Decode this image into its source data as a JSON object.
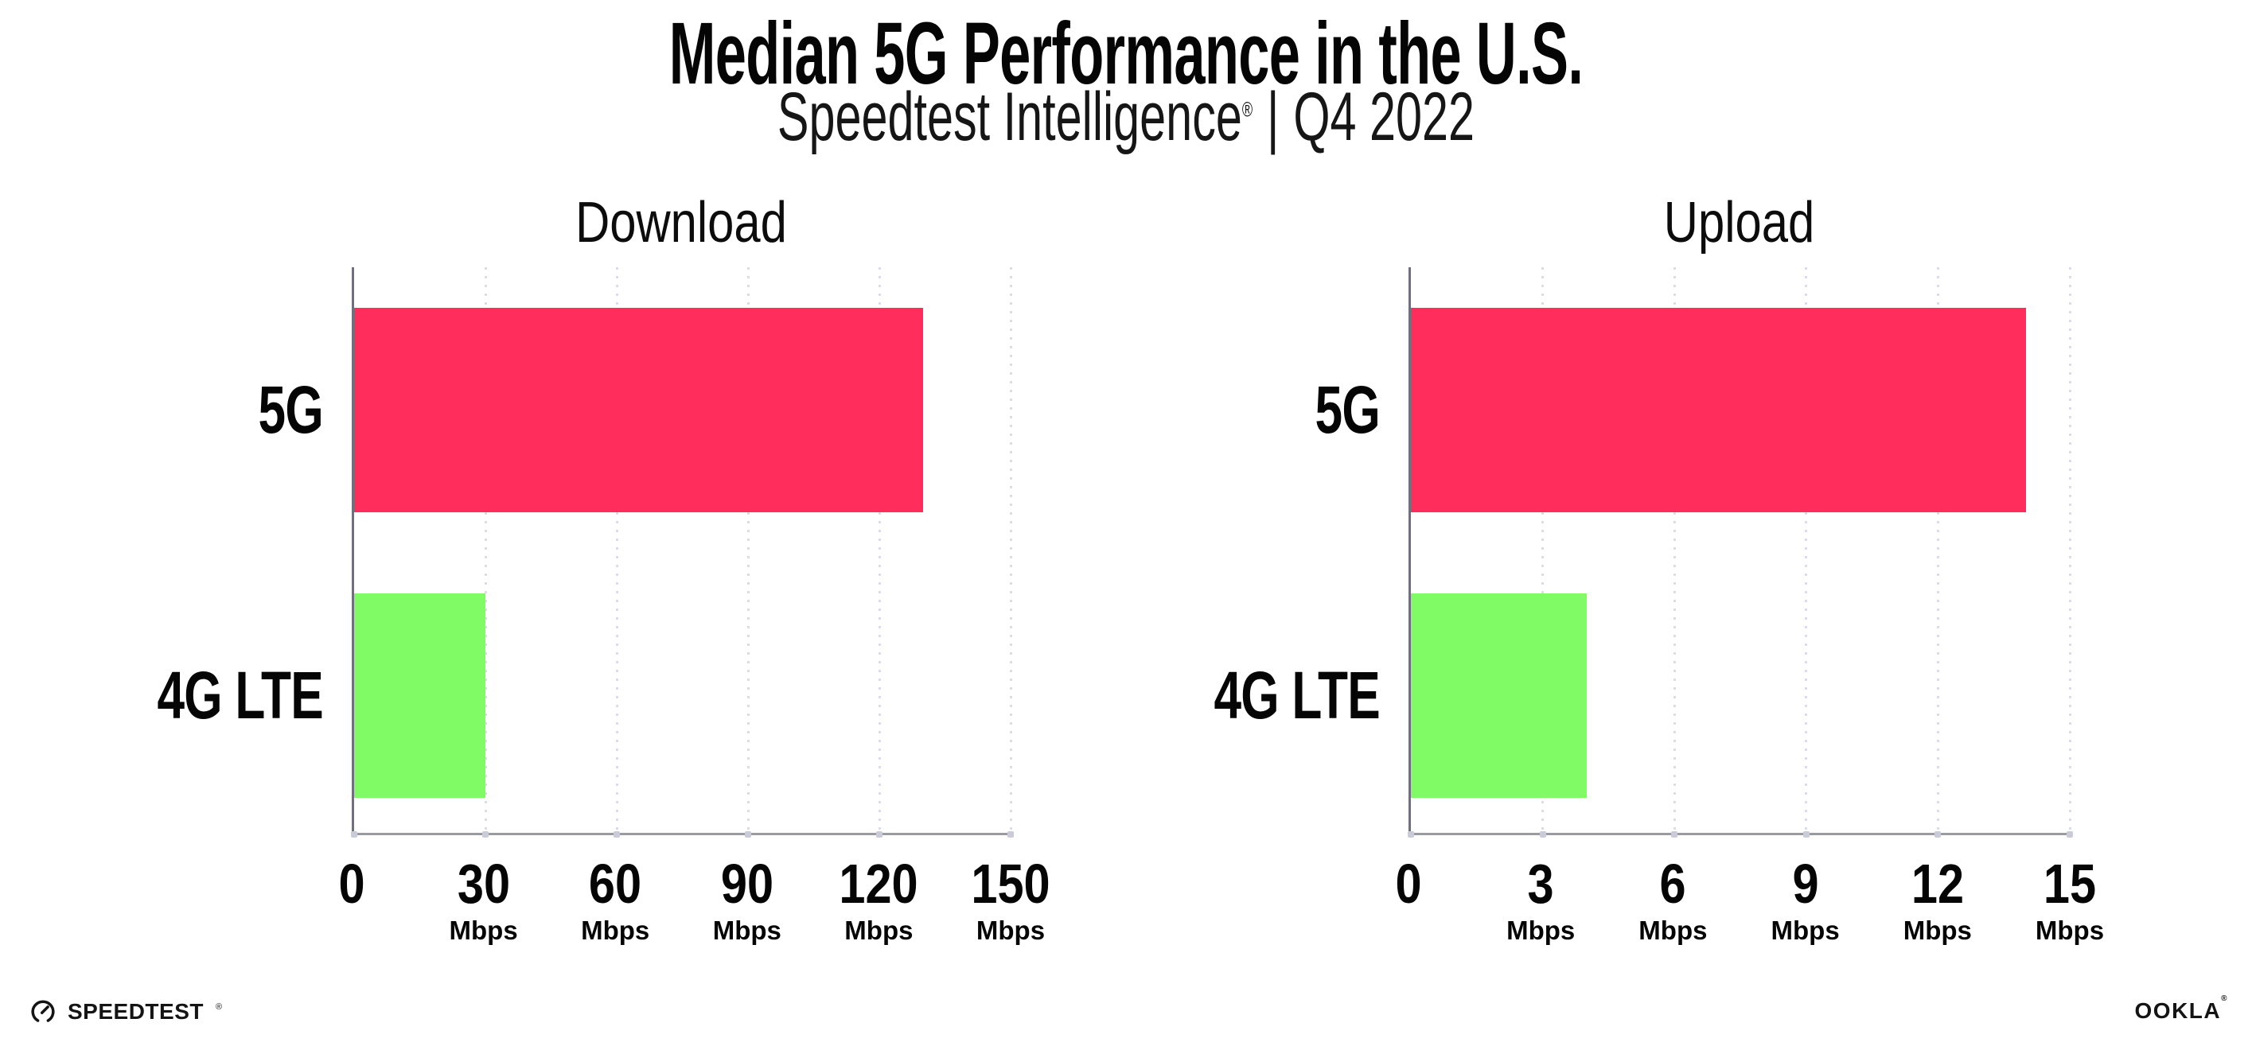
{
  "header": {
    "title": "Median 5G Performance in the U.S.",
    "subtitle_brand": "Speedtest Intelligence",
    "subtitle_reg": "®",
    "subtitle_divider": "|",
    "subtitle_period": "Q4 2022"
  },
  "chart_data": [
    {
      "type": "bar",
      "orientation": "horizontal",
      "title": "Download",
      "categories": [
        "5G",
        "4G LTE"
      ],
      "values": [
        130,
        30
      ],
      "unit": "Mbps",
      "xlabel": "",
      "ylabel": "",
      "xlim": [
        0,
        150
      ],
      "xticks": [
        0,
        30,
        60,
        90,
        120,
        150
      ],
      "bar_colors": [
        "#FF2D5B",
        "#80FB66"
      ],
      "grid": "dotted-vertical",
      "legend": "none"
    },
    {
      "type": "bar",
      "orientation": "horizontal",
      "title": "Upload",
      "categories": [
        "5G",
        "4G LTE"
      ],
      "values": [
        14,
        4
      ],
      "unit": "Mbps",
      "xlabel": "",
      "ylabel": "",
      "xlim": [
        0,
        15
      ],
      "xticks": [
        0,
        3,
        6,
        9,
        12,
        15
      ],
      "bar_colors": [
        "#FF2D5B",
        "#80FB66"
      ],
      "grid": "dotted-vertical",
      "legend": "none"
    }
  ],
  "footer": {
    "speedtest_logo": {
      "icon": "speedtest-gauge-icon",
      "label": "SPEEDTEST",
      "reg": "®"
    },
    "ookla_logo": {
      "label": "OOKLA",
      "reg": "®"
    }
  },
  "colors": {
    "bar_5g": "#FF2D5B",
    "bar_4g_lte": "#80FB66",
    "axis": "#9a9aa1",
    "grid_dot": "#dcdce8",
    "text": "#0f0f0f",
    "background": "#ffffff"
  }
}
